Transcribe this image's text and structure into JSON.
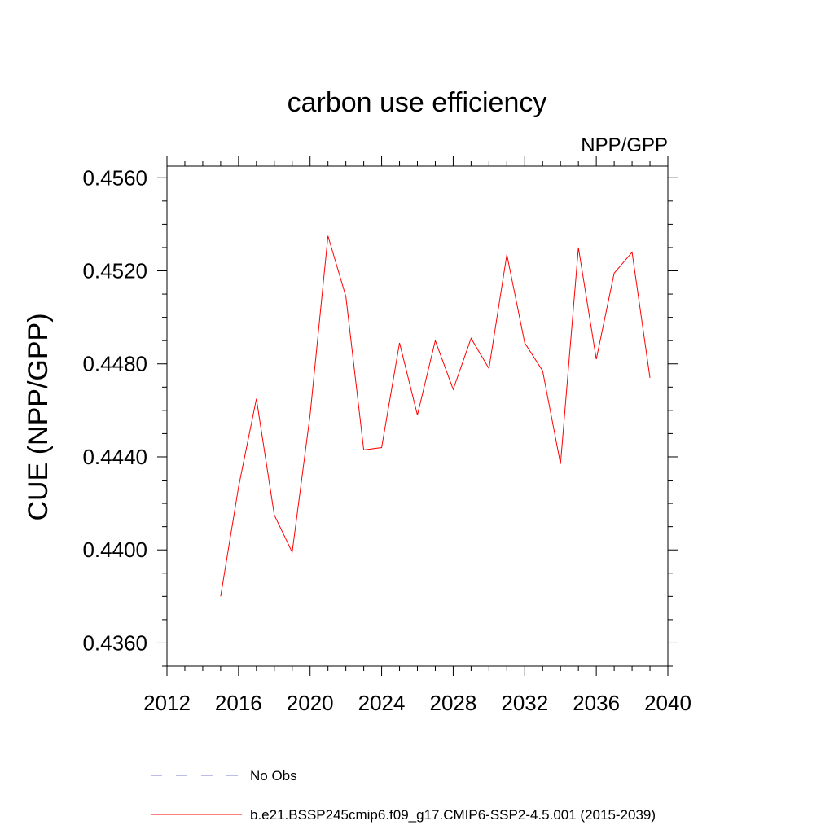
{
  "chart_data": {
    "type": "line",
    "title": "carbon use efficiency",
    "subtitle": "NPP/GPP",
    "xlabel": "",
    "ylabel": "CUE  (NPP/GPP)",
    "xlim": [
      2012,
      2040
    ],
    "ylim": [
      0.435,
      0.4565
    ],
    "xticks": [
      2012,
      2016,
      2020,
      2024,
      2028,
      2032,
      2036,
      2040
    ],
    "yticks": [
      0.436,
      0.44,
      0.444,
      0.448,
      0.452,
      0.456
    ],
    "ytick_labels": [
      "0.4360",
      "0.4400",
      "0.4440",
      "0.4480",
      "0.4520",
      "0.4560"
    ],
    "series": [
      {
        "name": "b.e21.BSSP245cmip6.f09_g17.CMIP6-SSP2-4.5.001 (2015-2039)",
        "color": "#ff0000",
        "x": [
          2015,
          2016,
          2017,
          2018,
          2019,
          2020,
          2021,
          2022,
          2023,
          2024,
          2025,
          2026,
          2027,
          2028,
          2029,
          2030,
          2031,
          2032,
          2033,
          2034,
          2035,
          2036,
          2037,
          2038,
          2039
        ],
        "y": [
          0.438,
          0.4427,
          0.4465,
          0.4415,
          0.4399,
          0.4458,
          0.4535,
          0.4509,
          0.4443,
          0.4444,
          0.4489,
          0.4458,
          0.449,
          0.4469,
          0.4491,
          0.4478,
          0.4527,
          0.4489,
          0.4477,
          0.4437,
          0.453,
          0.4482,
          0.4519,
          0.4528,
          0.4474
        ]
      }
    ],
    "legend": [
      {
        "label": "No Obs",
        "color": "#7b7bd6",
        "style": "dashed"
      },
      {
        "label": "b.e21.BSSP245cmip6.f09_g17.CMIP6-SSP2-4.5.001 (2015-2039)",
        "color": "#ff0000",
        "style": "solid"
      }
    ],
    "legend_position": "bottom",
    "grid": false
  }
}
